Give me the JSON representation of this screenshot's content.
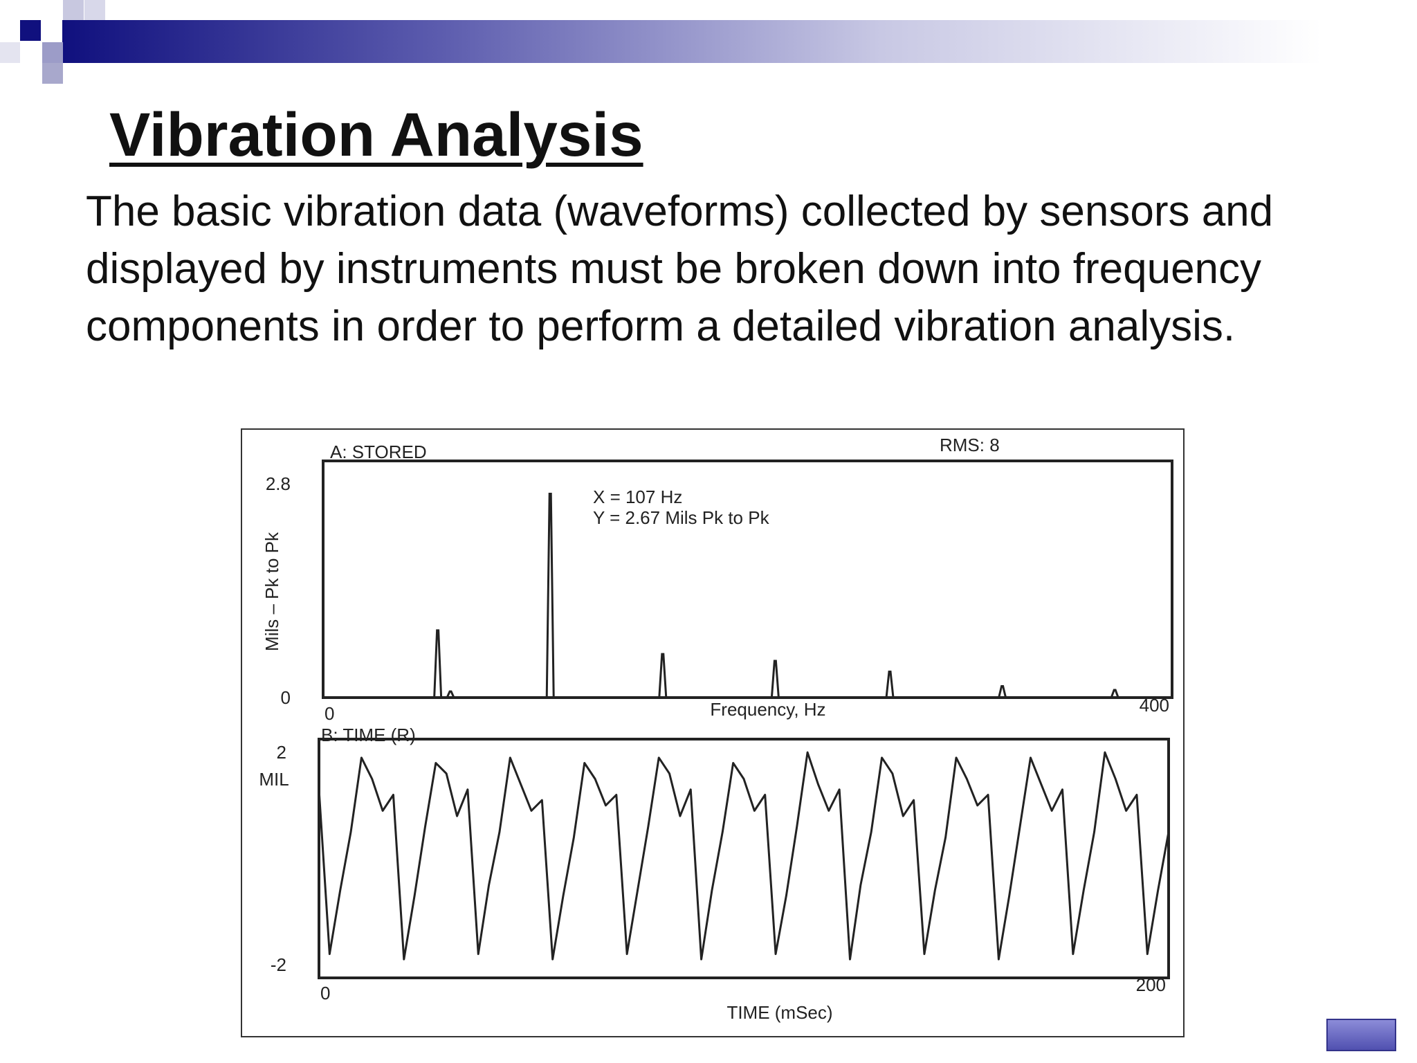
{
  "slide": {
    "title": "Vibration Analysis",
    "body": "The basic vibration data (waveforms) collected by sensors and displayed by instruments must be broken down into frequency components in order to perform a detailed vibration analysis."
  },
  "chart_data": [
    {
      "type": "stem",
      "panel_label": "A:  STORED",
      "rms_label": "RMS:  8",
      "annotations": [
        "X = 107 Hz",
        "Y = 2.67 Mils Pk to Pk"
      ],
      "x_label": "Frequency, Hz",
      "y_label": "Mils – Pk to Pk",
      "color": "#222222",
      "x": [
        54,
        60,
        107,
        160,
        213,
        267,
        320,
        373
      ],
      "values": [
        0.88,
        0.08,
        2.67,
        0.57,
        0.48,
        0.34,
        0.15,
        0.1
      ],
      "xlim": [
        0,
        400
      ],
      "xticks": [
        0,
        400
      ],
      "ylim": [
        0,
        3.1
      ],
      "yticks": [
        0,
        2.8
      ]
    },
    {
      "type": "line",
      "panel_label": "B:  TIME (R)",
      "y_unit": "MIL",
      "x_label": "TIME (mSec)",
      "color": "#222222",
      "x": [
        0,
        2.5,
        5,
        7.5,
        10,
        12.5,
        15,
        17.5,
        20,
        22.5,
        25,
        27.5,
        30,
        32.5,
        35,
        37.5,
        40,
        42.5,
        45,
        47.5,
        50,
        52.5,
        55,
        57.5,
        60,
        62.5,
        65,
        67.5,
        70,
        72.5,
        75,
        77.5,
        80,
        82.5,
        85,
        87.5,
        90,
        92.5,
        95,
        97.5,
        100,
        102.5,
        105,
        107.5,
        110,
        112.5,
        115,
        117.5,
        120,
        122.5,
        125,
        127.5,
        130,
        132.5,
        135,
        137.5,
        140,
        142.5,
        145,
        147.5,
        150,
        152.5,
        155,
        157.5,
        160,
        162.5,
        165,
        167.5,
        170,
        172.5,
        175,
        177.5,
        180,
        182.5,
        185,
        187.5,
        190,
        192.5,
        195,
        197.5,
        200
      ],
      "values": [
        1.3,
        -1.8,
        -0.6,
        0.5,
        1.9,
        1.5,
        0.9,
        1.2,
        -1.9,
        -0.7,
        0.6,
        1.8,
        1.6,
        0.8,
        1.3,
        -1.8,
        -0.5,
        0.5,
        1.9,
        1.4,
        0.9,
        1.1,
        -1.9,
        -0.7,
        0.4,
        1.8,
        1.5,
        1.0,
        1.2,
        -1.8,
        -0.6,
        0.6,
        1.9,
        1.6,
        0.8,
        1.3,
        -1.9,
        -0.6,
        0.5,
        1.8,
        1.5,
        0.9,
        1.2,
        -1.8,
        -0.7,
        0.6,
        2.0,
        1.4,
        0.9,
        1.3,
        -1.9,
        -0.5,
        0.5,
        1.9,
        1.6,
        0.8,
        1.1,
        -1.8,
        -0.6,
        0.4,
        1.9,
        1.5,
        1.0,
        1.2,
        -1.9,
        -0.7,
        0.6,
        1.9,
        1.4,
        0.9,
        1.3,
        -1.8,
        -0.6,
        0.5,
        2.0,
        1.5,
        0.9,
        1.2,
        -1.8,
        -0.6,
        0.5
      ],
      "xlim": [
        0,
        200
      ],
      "xticks": [
        0,
        200
      ],
      "ylim": [
        -2.25,
        2.25
      ],
      "yticks": [
        -2,
        2
      ]
    }
  ]
}
